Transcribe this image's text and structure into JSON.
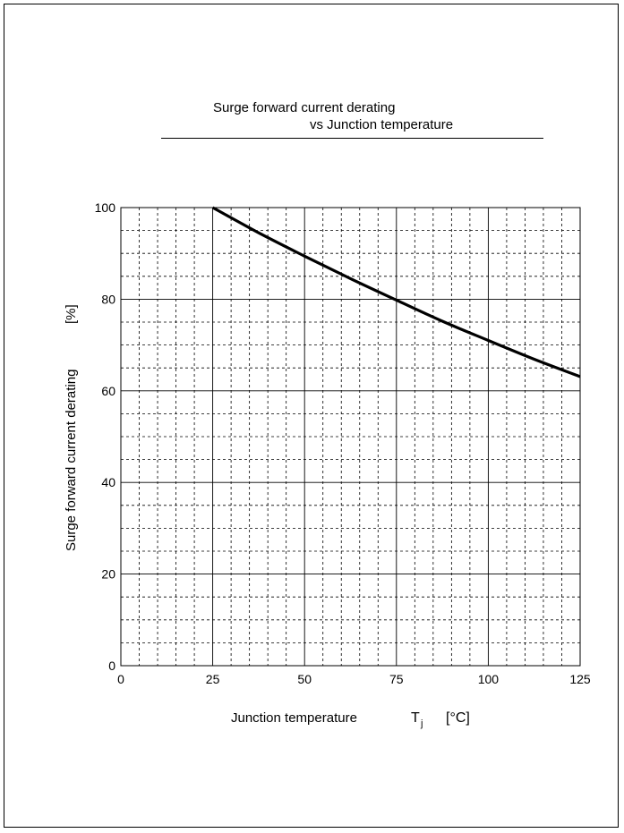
{
  "chart_data": {
    "type": "line",
    "title_line1": "Surge forward current derating",
    "title_line2": "vs Junction temperature",
    "xlabel": "Junction temperature",
    "xlabel_symbol": "T",
    "xlabel_subscript": "j",
    "xlabel_unit": "[°C]",
    "ylabel": "Surge forward current derating",
    "ylabel_unit": "[%]",
    "xlim": [
      0,
      125
    ],
    "ylim": [
      0,
      100
    ],
    "x_ticks": [
      "0",
      "25",
      "50",
      "75",
      "100",
      "125"
    ],
    "y_ticks": [
      "0",
      "20",
      "40",
      "60",
      "80",
      "100"
    ],
    "x_major_step": 25,
    "x_minor_step": 5,
    "y_major_step": 20,
    "y_minor_step": 5,
    "grid": true,
    "series": [
      {
        "x": [
          25,
          37.5,
          50,
          62.5,
          75,
          87.5,
          100,
          112.5,
          125
        ],
        "values": [
          100,
          94.5,
          89.4,
          84.5,
          79.8,
          75.2,
          71.0,
          66.9,
          63.1
        ]
      }
    ]
  }
}
